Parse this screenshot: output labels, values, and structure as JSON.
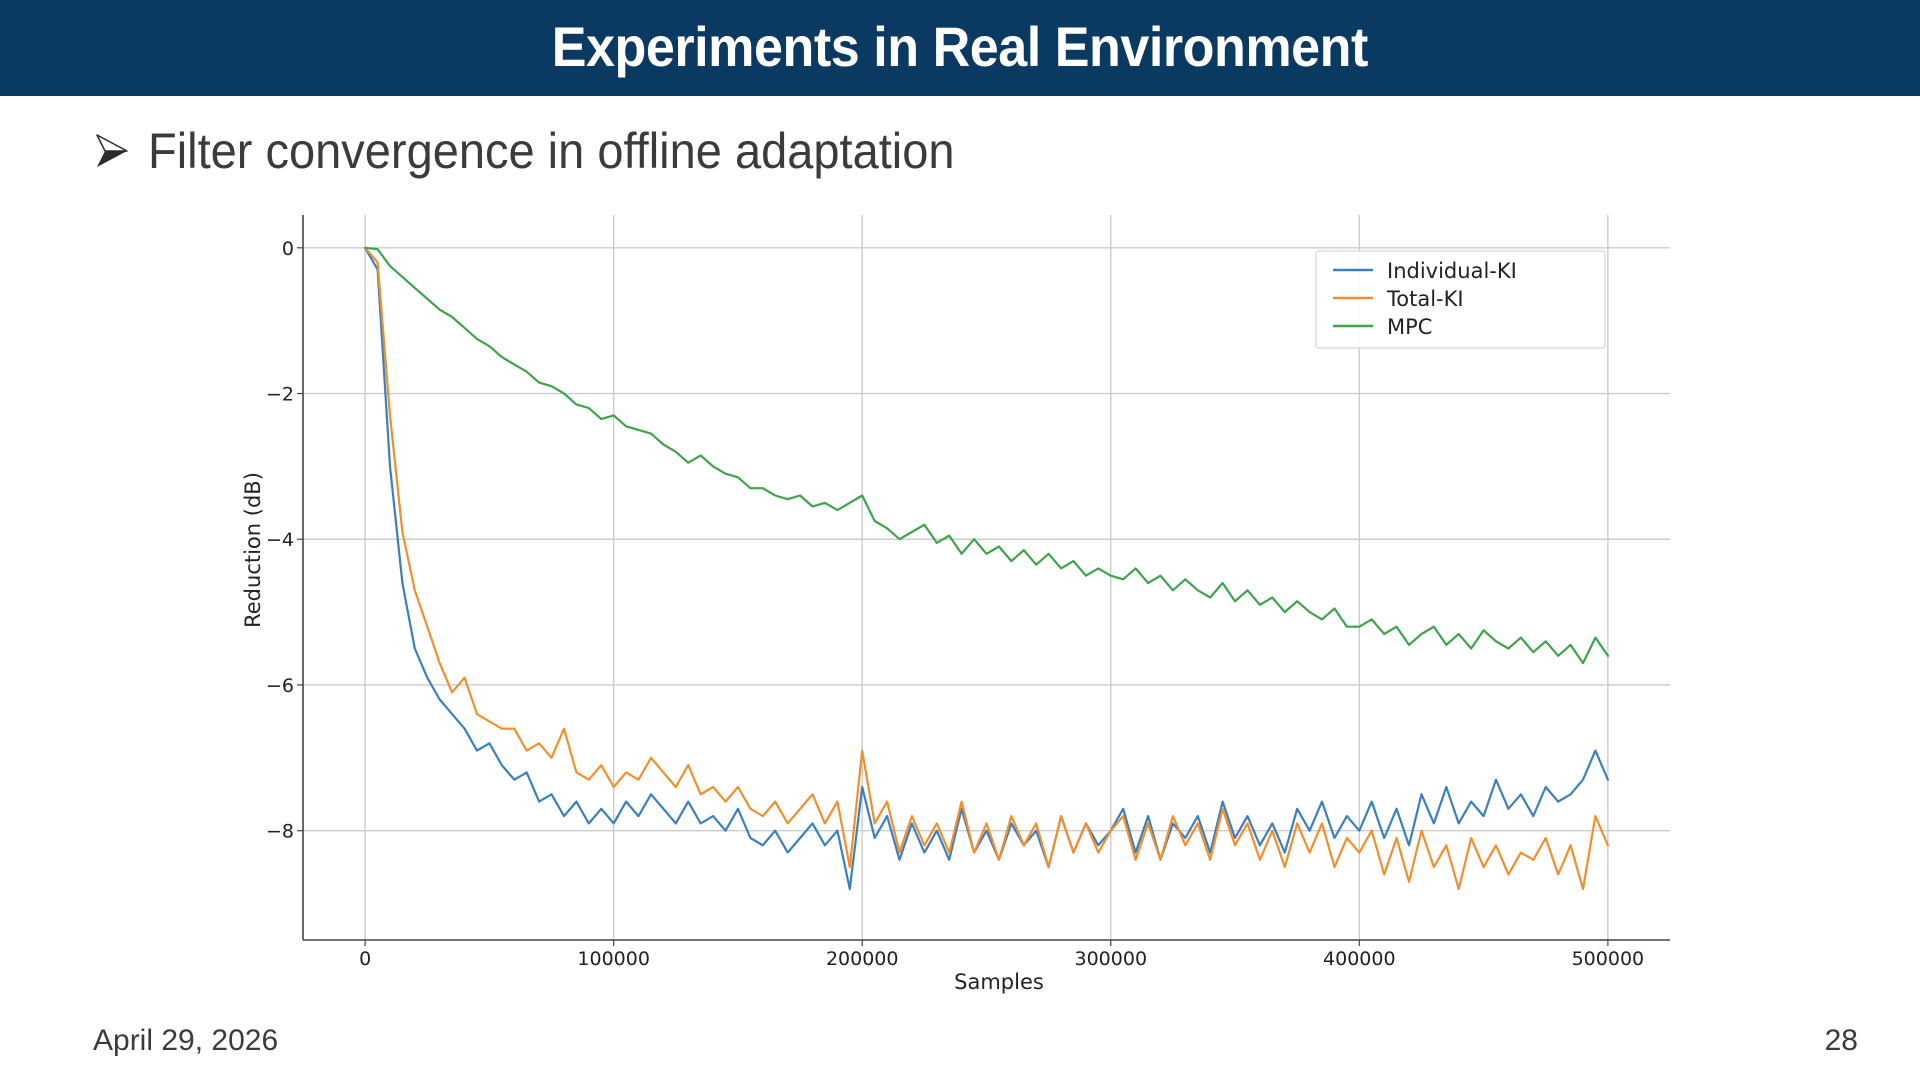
{
  "header": {
    "title": "Experiments in Real Environment",
    "background_color": "#0a3a62"
  },
  "bullet": {
    "icon": "arrowhead-bullet-icon",
    "text": "Filter convergence in offline adaptation"
  },
  "footer": {
    "date": "April 29, 2026",
    "page_number": "28"
  },
  "chart_data": {
    "type": "line",
    "title": "",
    "xlabel": "Samples",
    "ylabel": "Reduction (dB)",
    "xlim": [
      -25000,
      525000
    ],
    "ylim": [
      -9.5,
      0.45
    ],
    "xticks": [
      0,
      100000,
      200000,
      300000,
      400000,
      500000
    ],
    "xtick_labels": [
      "0",
      "100000",
      "200000",
      "300000",
      "400000",
      "500000"
    ],
    "yticks": [
      0,
      -2,
      -4,
      -6,
      -8
    ],
    "ytick_labels": [
      "0",
      "−2",
      "−4",
      "−6",
      "−8"
    ],
    "grid": true,
    "legend_position": "top-right",
    "x_step": 5000,
    "x_start": 0,
    "series": [
      {
        "name": "Individual-KI",
        "color": "#3a7fbf",
        "values": [
          0,
          -0.3,
          -3.0,
          -4.6,
          -5.5,
          -5.9,
          -6.2,
          -6.4,
          -6.6,
          -6.9,
          -6.8,
          -7.1,
          -7.3,
          -7.2,
          -7.6,
          -7.5,
          -7.8,
          -7.6,
          -7.9,
          -7.7,
          -7.9,
          -7.6,
          -7.8,
          -7.5,
          -7.7,
          -7.9,
          -7.6,
          -7.9,
          -7.8,
          -8.0,
          -7.7,
          -8.1,
          -8.2,
          -8.0,
          -8.3,
          -8.1,
          -7.9,
          -8.2,
          -8.0,
          -8.8,
          -7.4,
          -8.1,
          -7.8,
          -8.4,
          -7.9,
          -8.3,
          -8.0,
          -8.4,
          -7.7,
          -8.3,
          -8.0,
          -8.4,
          -7.9,
          -8.2,
          -8.0,
          -8.5,
          -7.8,
          -8.3,
          -7.9,
          -8.2,
          -8.0,
          -7.7,
          -8.3,
          -7.8,
          -8.4,
          -7.9,
          -8.1,
          -7.8,
          -8.3,
          -7.6,
          -8.1,
          -7.8,
          -8.2,
          -7.9,
          -8.3,
          -7.7,
          -8.0,
          -7.6,
          -8.1,
          -7.8,
          -8.0,
          -7.6,
          -8.1,
          -7.7,
          -8.2,
          -7.5,
          -7.9,
          -7.4,
          -7.9,
          -7.6,
          -7.8,
          -7.3,
          -7.7,
          -7.5,
          -7.8,
          -7.4,
          -7.6,
          -7.5,
          -7.3,
          -6.9,
          -7.3
        ]
      },
      {
        "name": "Total-KI",
        "color": "#f28e2b",
        "values": [
          0,
          -0.2,
          -2.3,
          -3.9,
          -4.7,
          -5.2,
          -5.7,
          -6.1,
          -5.9,
          -6.4,
          -6.5,
          -6.6,
          -6.6,
          -6.9,
          -6.8,
          -7.0,
          -6.6,
          -7.2,
          -7.3,
          -7.1,
          -7.4,
          -7.2,
          -7.3,
          -7.0,
          -7.2,
          -7.4,
          -7.1,
          -7.5,
          -7.4,
          -7.6,
          -7.4,
          -7.7,
          -7.8,
          -7.6,
          -7.9,
          -7.7,
          -7.5,
          -7.9,
          -7.6,
          -8.5,
          -6.9,
          -7.9,
          -7.6,
          -8.3,
          -7.8,
          -8.2,
          -7.9,
          -8.3,
          -7.6,
          -8.3,
          -7.9,
          -8.4,
          -7.8,
          -8.2,
          -7.9,
          -8.5,
          -7.8,
          -8.3,
          -7.9,
          -8.3,
          -8.0,
          -7.8,
          -8.4,
          -7.9,
          -8.4,
          -7.8,
          -8.2,
          -7.9,
          -8.4,
          -7.7,
          -8.2,
          -7.9,
          -8.4,
          -8.0,
          -8.5,
          -7.9,
          -8.3,
          -7.9,
          -8.5,
          -8.1,
          -8.3,
          -8.0,
          -8.6,
          -8.1,
          -8.7,
          -8.0,
          -8.5,
          -8.2,
          -8.8,
          -8.1,
          -8.5,
          -8.2,
          -8.6,
          -8.3,
          -8.4,
          -8.1,
          -8.6,
          -8.2,
          -8.8,
          -7.8,
          -8.2
        ]
      },
      {
        "name": "MPC",
        "color": "#3fa34d",
        "values": [
          0,
          -0.02,
          -0.25,
          -0.4,
          -0.55,
          -0.7,
          -0.85,
          -0.95,
          -1.1,
          -1.25,
          -1.35,
          -1.5,
          -1.6,
          -1.7,
          -1.85,
          -1.9,
          -2.0,
          -2.15,
          -2.2,
          -2.35,
          -2.3,
          -2.45,
          -2.5,
          -2.55,
          -2.7,
          -2.8,
          -2.95,
          -2.85,
          -3.0,
          -3.1,
          -3.15,
          -3.3,
          -3.3,
          -3.4,
          -3.45,
          -3.4,
          -3.55,
          -3.5,
          -3.6,
          -3.5,
          -3.4,
          -3.75,
          -3.85,
          -4.0,
          -3.9,
          -3.8,
          -4.05,
          -3.95,
          -4.2,
          -4.0,
          -4.2,
          -4.1,
          -4.3,
          -4.15,
          -4.35,
          -4.2,
          -4.4,
          -4.3,
          -4.5,
          -4.4,
          -4.5,
          -4.55,
          -4.4,
          -4.6,
          -4.5,
          -4.7,
          -4.55,
          -4.7,
          -4.8,
          -4.6,
          -4.85,
          -4.7,
          -4.9,
          -4.8,
          -5.0,
          -4.85,
          -5.0,
          -5.1,
          -4.95,
          -5.2,
          -5.2,
          -5.1,
          -5.3,
          -5.2,
          -5.45,
          -5.3,
          -5.2,
          -5.45,
          -5.3,
          -5.5,
          -5.25,
          -5.4,
          -5.5,
          -5.35,
          -5.55,
          -5.4,
          -5.6,
          -5.45,
          -5.7,
          -5.35,
          -5.6
        ]
      }
    ]
  }
}
